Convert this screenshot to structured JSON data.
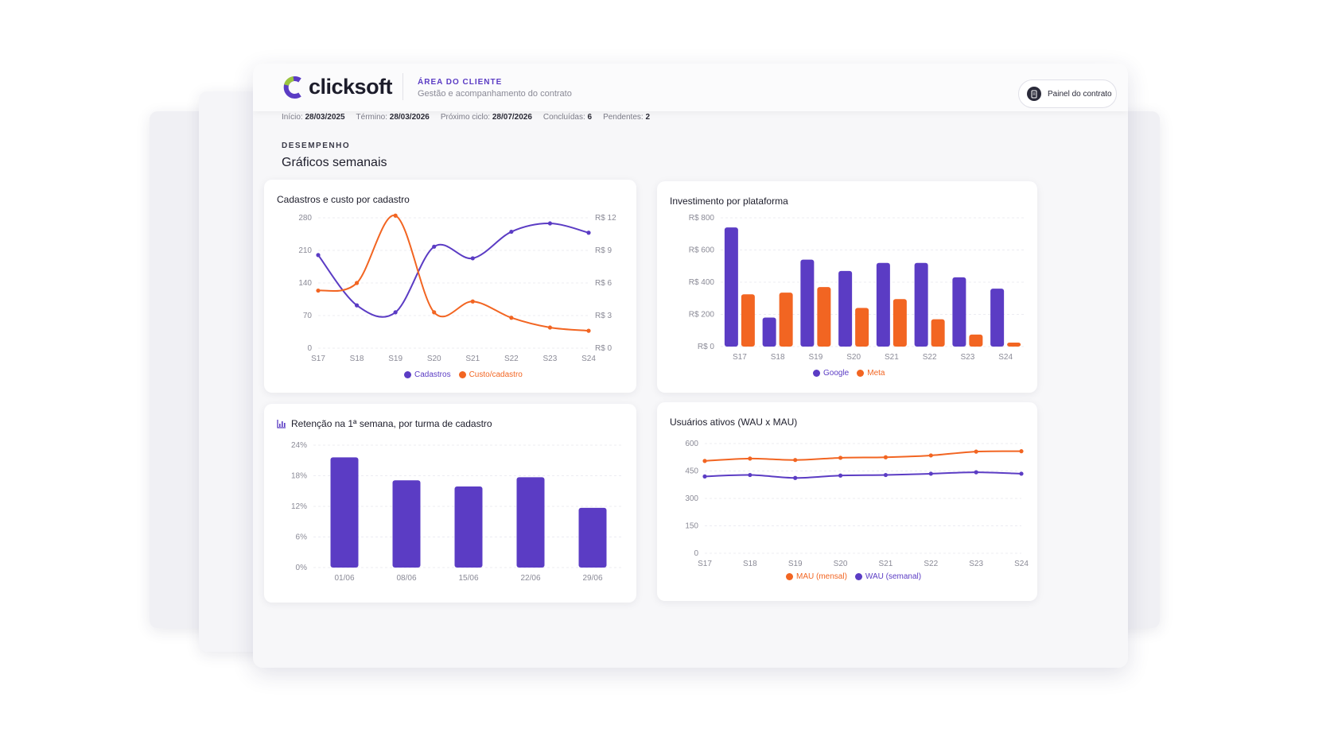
{
  "brand": {
    "name": "clicksoft",
    "accent": "#5b3cc4",
    "orange": "#f26522",
    "green": "#9bc53d"
  },
  "header": {
    "area_label": "ÁREA DO CLIENTE",
    "area_sub": "Gestão e acompanhamento do contrato",
    "contract_button": "Painel do contrato",
    "contract_icon": "document-icon"
  },
  "meta": {
    "inicio_label": "Início:",
    "inicio": "28/03/2025",
    "termino_label": "Término:",
    "termino": "28/03/2026",
    "proximo_label": "Próximo ciclo:",
    "proximo": "28/07/2026",
    "concluidas_label": "Concluídas:",
    "concluidas": "6",
    "pendentes_label": "Pendentes:",
    "pendentes": "2"
  },
  "section": {
    "label": "DESEMPENHO",
    "title": "Gráficos semanais"
  },
  "chart_data": [
    {
      "id": "cadastros",
      "type": "line",
      "title": "Cadastros e custo por cadastro",
      "categories": [
        "S17",
        "S18",
        "S19",
        "S20",
        "S21",
        "S22",
        "S23",
        "S24"
      ],
      "ylim": [
        0,
        280
      ],
      "y_ticks": [
        "0",
        "70",
        "140",
        "210",
        "280"
      ],
      "y2lim": [
        0,
        12
      ],
      "y2_ticks": [
        "R$ 0",
        "R$ 3",
        "R$ 6",
        "R$ 9",
        "R$ 12"
      ],
      "series": [
        {
          "name": "Cadastros",
          "axis": "left",
          "color": "#5b3cc4",
          "values": [
            200,
            92,
            77,
            218,
            193,
            250,
            268,
            248
          ]
        },
        {
          "name": "Custo/cadastro",
          "axis": "right",
          "color": "#f26522",
          "values": [
            5.3,
            6.0,
            12.2,
            3.3,
            4.3,
            2.8,
            1.9,
            1.6
          ]
        }
      ]
    },
    {
      "id": "investimento",
      "type": "bar",
      "title": "Investimento por plataforma",
      "categories": [
        "S17",
        "S18",
        "S19",
        "S20",
        "S21",
        "S22",
        "S23",
        "S24"
      ],
      "ylim": [
        0,
        800
      ],
      "y_ticks": [
        "R$ 0",
        "R$ 200",
        "R$ 400",
        "R$ 600",
        "R$ 800"
      ],
      "series": [
        {
          "name": "Google",
          "color": "#5b3cc4",
          "values": [
            740,
            180,
            540,
            470,
            520,
            520,
            430,
            360
          ]
        },
        {
          "name": "Meta",
          "color": "#f26522",
          "values": [
            325,
            335,
            370,
            240,
            295,
            170,
            75,
            25
          ]
        }
      ]
    },
    {
      "id": "retencao",
      "type": "bar",
      "title": "Retenção na 1ª semana, por turma de cadastro",
      "title_icon": "bar-chart-icon",
      "categories": [
        "01/06",
        "08/06",
        "15/06",
        "22/06",
        "29/06"
      ],
      "ylim": [
        0,
        24
      ],
      "y_ticks": [
        "0%",
        "6%",
        "12%",
        "18%",
        "24%"
      ],
      "series": [
        {
          "name": "Retenção",
          "color": "#5b3cc4",
          "values": [
            21.6,
            17.1,
            15.9,
            17.7,
            11.7
          ]
        }
      ]
    },
    {
      "id": "usuarios",
      "type": "line",
      "title": "Usuários ativos (WAU x MAU)",
      "categories": [
        "S17",
        "S18",
        "S19",
        "S20",
        "S21",
        "S22",
        "S23",
        "S24"
      ],
      "ylim": [
        0,
        600
      ],
      "y_ticks": [
        "0",
        "150",
        "300",
        "450",
        "600"
      ],
      "series": [
        {
          "name": "MAU (mensal)",
          "color": "#f26522",
          "values": [
            505,
            518,
            510,
            522,
            525,
            535,
            556,
            558
          ]
        },
        {
          "name": "WAU (semanal)",
          "color": "#5b3cc4",
          "values": [
            420,
            428,
            412,
            425,
            428,
            435,
            443,
            435
          ]
        }
      ]
    }
  ]
}
